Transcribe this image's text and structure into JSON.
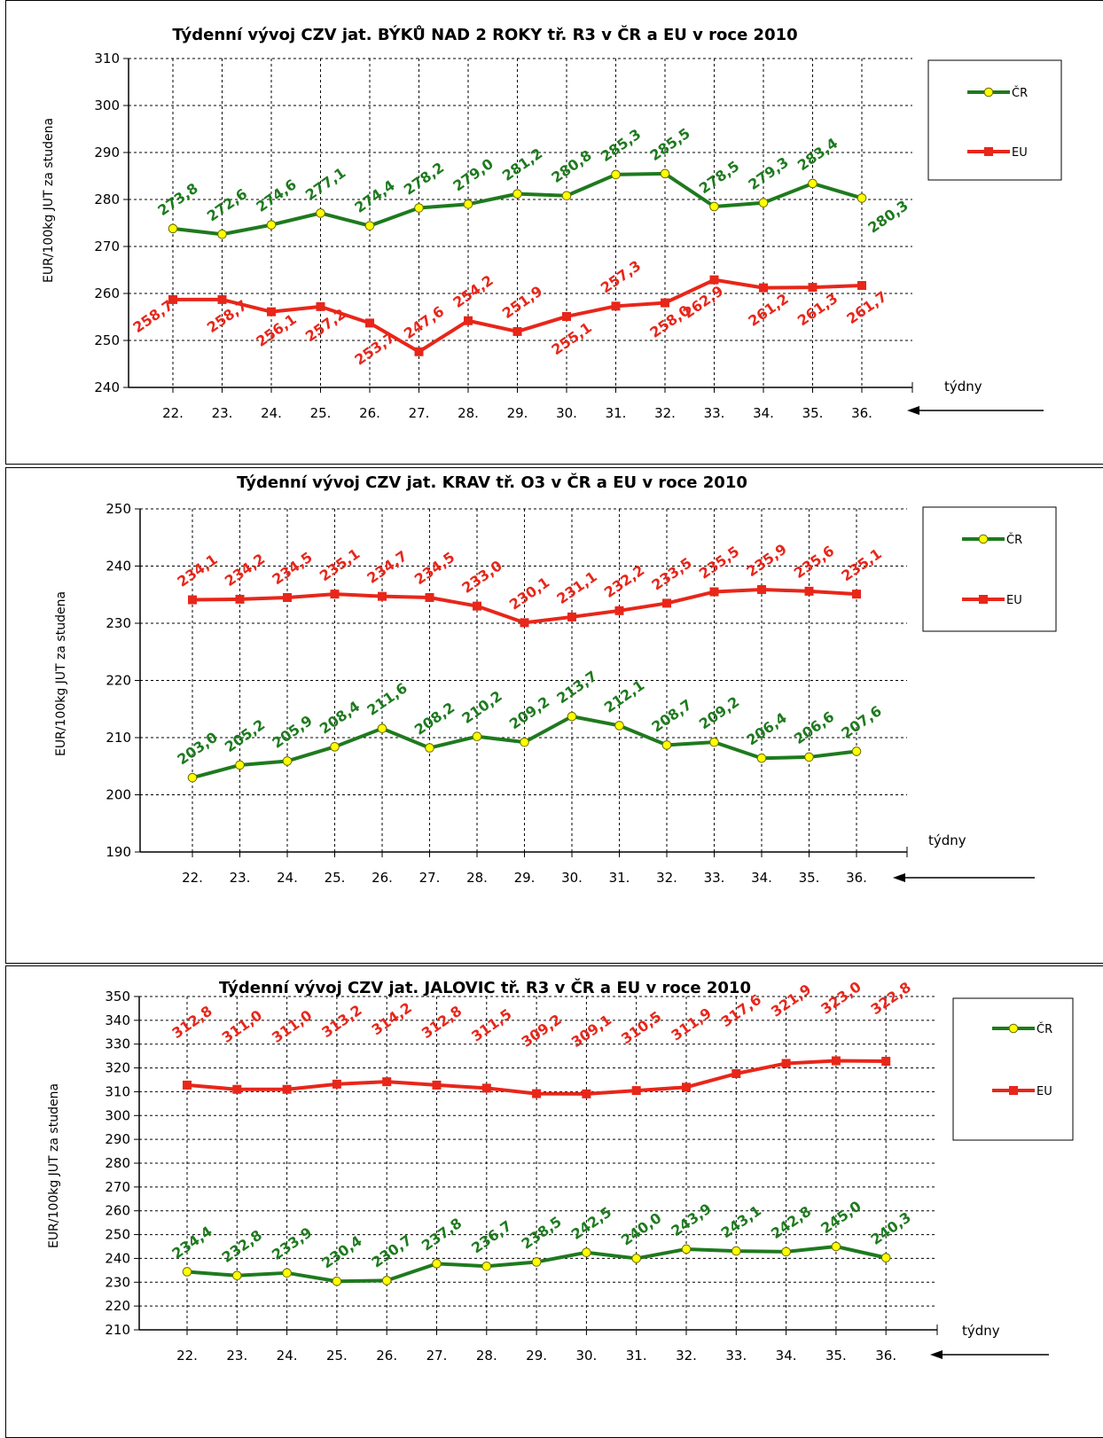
{
  "colors": {
    "cr": "#1e7a1e",
    "eu": "#e8261a",
    "marker_fill": "#ffff00"
  },
  "chart_data": [
    {
      "type": "line",
      "title": "Týdenní vývoj CZV jat. BÝKŮ NAD 2 ROKY tř. R3  v ČR a EU v roce 2010",
      "ylabel": "EUR/100kg  JUT za studena",
      "xlabel": "týdny",
      "categories": [
        "22.",
        "23.",
        "24.",
        "25.",
        "26.",
        "27.",
        "28.",
        "29.",
        "30.",
        "31.",
        "32.",
        "33.",
        "34.",
        "35.",
        "36."
      ],
      "ylim": [
        240,
        310
      ],
      "yticks": [
        "240",
        "250",
        "260",
        "270",
        "280",
        "290",
        "300",
        "310"
      ],
      "grid": true,
      "legend": "right",
      "series": [
        {
          "name": "ČR",
          "values": [
            273.8,
            272.6,
            274.6,
            277.1,
            274.4,
            278.2,
            279.0,
            281.2,
            280.8,
            285.3,
            285.5,
            278.5,
            279.3,
            283.4,
            280.3
          ],
          "labels": [
            "273,8",
            "272,6",
            "274,6",
            "277,1",
            "274,4",
            "278,2",
            "279,0",
            "281,2",
            "280,8",
            "285,3",
            "285,5",
            "278,5",
            "279,3",
            "283,4",
            "280,3"
          ]
        },
        {
          "name": "EU",
          "values": [
            258.7,
            258.7,
            256.1,
            257.2,
            253.7,
            247.6,
            254.2,
            251.9,
            255.1,
            257.3,
            258.0,
            262.9,
            261.2,
            261.3,
            261.7
          ],
          "labels": [
            "258,7",
            "258,7",
            "256,1",
            "257,2",
            "253,7",
            "247,6",
            "254,2",
            "251,9",
            "255,1",
            "257,3",
            "258,0",
            "262,9",
            "261,2",
            "261,3",
            "261,7"
          ]
        }
      ]
    },
    {
      "type": "line",
      "title": "Týdenní vývoj CZV jat. KRAV tř. O3  v ČR a EU v roce 2010",
      "ylabel": "EUR/100kg  JUT za studena",
      "xlabel": "týdny",
      "categories": [
        "22.",
        "23.",
        "24.",
        "25.",
        "26.",
        "27.",
        "28.",
        "29.",
        "30.",
        "31.",
        "32.",
        "33.",
        "34.",
        "35.",
        "36."
      ],
      "ylim": [
        190,
        250
      ],
      "yticks": [
        "190",
        "200",
        "210",
        "220",
        "230",
        "240",
        "250"
      ],
      "grid": true,
      "legend": "right",
      "series": [
        {
          "name": "ČR",
          "values": [
            203.0,
            205.2,
            205.9,
            208.4,
            211.6,
            208.2,
            210.2,
            209.2,
            213.7,
            212.1,
            208.7,
            209.2,
            206.4,
            206.6,
            207.6
          ],
          "labels": [
            "203,0",
            "205,2",
            "205,9",
            "208,4",
            "211,6",
            "208,2",
            "210,2",
            "209,2",
            "213,7",
            "212,1",
            "208,7",
            "209,2",
            "206,4",
            "206,6",
            "207,6"
          ]
        },
        {
          "name": "EU",
          "values": [
            234.1,
            234.2,
            234.5,
            235.1,
            234.7,
            234.5,
            233.0,
            230.1,
            231.1,
            232.2,
            233.5,
            235.5,
            235.9,
            235.6,
            235.1
          ],
          "labels": [
            "234,1",
            "234,2",
            "234,5",
            "235,1",
            "234,7",
            "234,5",
            "233,0",
            "230,1",
            "231,1",
            "232,2",
            "233,5",
            "235,5",
            "235,9",
            "235,6",
            "235,1"
          ]
        }
      ]
    },
    {
      "type": "line",
      "title": "Týdenní vývoj CZV jat. JALOVIC tř. R3  v ČR a EU v roce 2010",
      "ylabel": "EUR/100kg  JUT za studena",
      "xlabel": "týdny",
      "categories": [
        "22.",
        "23.",
        "24.",
        "25.",
        "26.",
        "27.",
        "28.",
        "29.",
        "30.",
        "31.",
        "32.",
        "33.",
        "34.",
        "35.",
        "36."
      ],
      "ylim": [
        210,
        350
      ],
      "yticks": [
        "210",
        "220",
        "230",
        "240",
        "250",
        "260",
        "270",
        "280",
        "290",
        "300",
        "310",
        "320",
        "330",
        "340",
        "350"
      ],
      "grid": true,
      "legend": "right",
      "series": [
        {
          "name": "ČR",
          "values": [
            234.4,
            232.8,
            233.9,
            230.4,
            230.7,
            237.8,
            236.7,
            238.5,
            242.5,
            240.0,
            243.9,
            243.1,
            242.8,
            245.0,
            240.3
          ],
          "labels": [
            "234,4",
            "232,8",
            "233,9",
            "230,4",
            "230,7",
            "237,8",
            "236,7",
            "238,5",
            "242,5",
            "240,0",
            "243,9",
            "243,1",
            "242,8",
            "245,0",
            "240,3"
          ]
        },
        {
          "name": "EU",
          "values": [
            312.8,
            311.0,
            311.0,
            313.2,
            314.2,
            312.8,
            311.5,
            309.2,
            309.1,
            310.5,
            311.9,
            317.6,
            321.9,
            323.0,
            322.8
          ],
          "labels": [
            "312,8",
            "311,0",
            "311,0",
            "313,2",
            "314,2",
            "312,8",
            "311,5",
            "309,2",
            "309,1",
            "310,5",
            "311,9",
            "317,6",
            "321,9",
            "323,0",
            "322,8"
          ]
        }
      ]
    }
  ]
}
